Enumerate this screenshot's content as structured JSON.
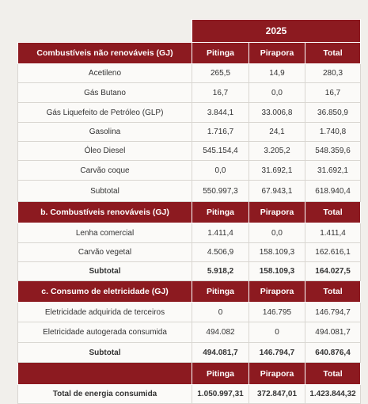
{
  "header": {
    "year": "2025"
  },
  "sections": [
    {
      "title": "Combustíveis não renováveis (GJ)",
      "columns": [
        "Pitinga",
        "Pirapora",
        "Total"
      ],
      "rows": [
        {
          "label": "Acetileno",
          "values": [
            "265,5",
            "14,9",
            "280,3"
          ]
        },
        {
          "label": "Gás Butano",
          "values": [
            "16,7",
            "0,0",
            "16,7"
          ]
        },
        {
          "label": "Gás Liquefeito de Petróleo (GLP)",
          "values": [
            "3.844,1",
            "33.006,8",
            "36.850,9"
          ]
        },
        {
          "label": "Gasolina",
          "values": [
            "1.716,7",
            "24,1",
            "1.740,8"
          ]
        },
        {
          "label": "Óleo Diesel",
          "values": [
            "545.154,4",
            "3.205,2",
            "548.359,6"
          ]
        },
        {
          "label": "Carvão coque",
          "values": [
            "0,0",
            "31.692,1",
            "31.692,1"
          ]
        }
      ],
      "subtotal": {
        "label": "Subtotal",
        "values": [
          "550.997,3",
          "67.943,1",
          "618.940,4"
        ]
      }
    },
    {
      "title": "b. Combustíveis renováveis (GJ)",
      "columns": [
        "Pitinga",
        "Pirapora",
        "Total"
      ],
      "rows": [
        {
          "label": "Lenha comercial",
          "values": [
            "1.411,4",
            "0,0",
            "1.411,4"
          ]
        },
        {
          "label": "Carvão vegetal",
          "values": [
            "4.506,9",
            "158.109,3",
            "162.616,1"
          ]
        }
      ],
      "subtotal": {
        "label": "Subtotal",
        "values": [
          "5.918,2",
          "158.109,3",
          "164.027,5"
        ]
      }
    },
    {
      "title": "c. Consumo de eletricidade (GJ)",
      "columns": [
        "Pitinga",
        "Pirapora",
        "Total"
      ],
      "rows": [
        {
          "label": "Eletricidade adquirida de terceiros",
          "values": [
            "0",
            "146.795",
            "146.794,7"
          ]
        },
        {
          "label": "Eletricidade autogerada consumida",
          "values": [
            "494.082",
            "0",
            "494.081,7"
          ]
        }
      ],
      "subtotal": {
        "label": "Subtotal",
        "values": [
          "494.081,7",
          "146.794,7",
          "640.876,4"
        ]
      }
    }
  ],
  "total": {
    "columns": [
      "Pitinga",
      "Pirapora",
      "Total"
    ],
    "label": "Total de energia consumida",
    "values": [
      "1.050.997,31",
      "372.847,01",
      "1.423.844,32"
    ]
  }
}
